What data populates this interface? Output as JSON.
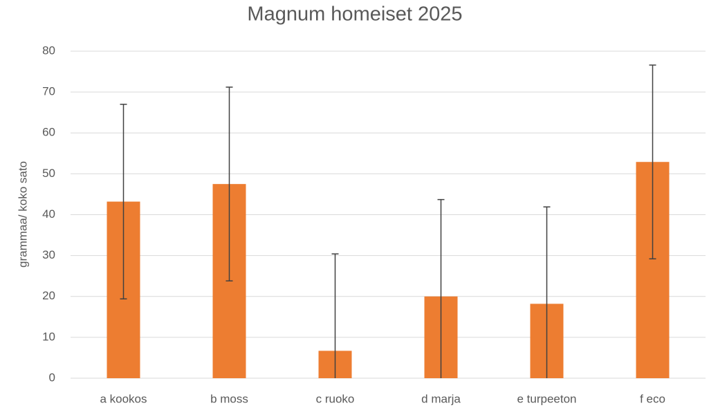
{
  "chart_data": {
    "type": "bar",
    "title": "Magnum homeiset 2025",
    "y_label": "grammaa/ koko sato",
    "categories": [
      "a kookos",
      "b moss",
      "c ruoko",
      "d marja",
      "e turpeeton",
      "f eco"
    ],
    "values": [
      43.2,
      47.5,
      6.7,
      20.0,
      18.2,
      52.9
    ],
    "errors": [
      23.8,
      23.7,
      23.7,
      23.7,
      23.7,
      23.7
    ],
    "color": "#ED7D31",
    "error_color": "#404040",
    "ylim": [
      0,
      80
    ],
    "yticks": [
      0,
      10,
      20,
      30,
      40,
      50,
      60,
      70,
      80
    ],
    "grid": true
  }
}
